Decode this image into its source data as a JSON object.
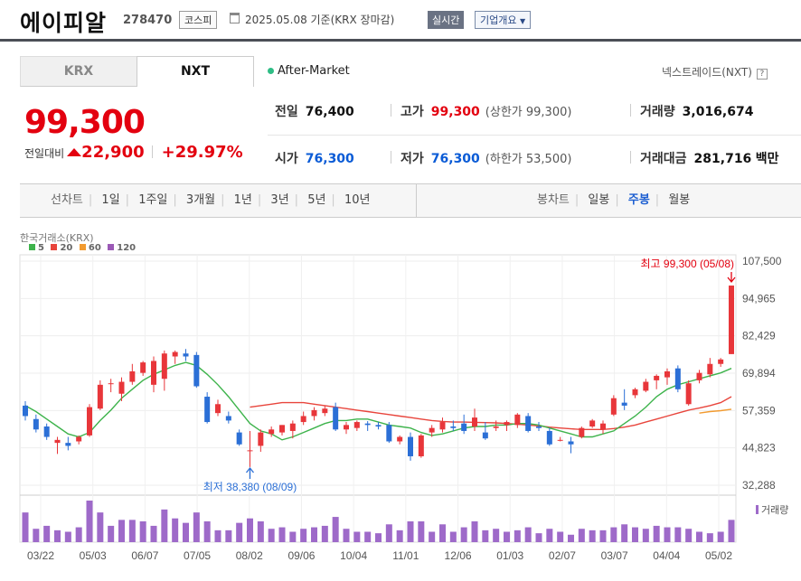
{
  "header": {
    "name": "에이피알",
    "code": "278470",
    "market": "코스피",
    "date_text": "2025.05.08  기준(KRX 장마감)",
    "realtime_label": "실시간",
    "overview_label": "기업개요"
  },
  "tabs": {
    "krx": "KRX",
    "nxt": "NXT"
  },
  "after_market": "After-Market",
  "nxt_link": "넥스트레이드(NXT)",
  "nxt_help": "?",
  "price": {
    "current": "99,300",
    "diff_label": "전일대비",
    "diff_amount": "22,900",
    "diff_pct": "+29.97%"
  },
  "stats": {
    "prev_close": {
      "label": "전일",
      "value": "76,400"
    },
    "high": {
      "label": "고가",
      "value": "99,300",
      "limit": "(상한가 99,300)"
    },
    "volume": {
      "label": "거래량",
      "value": "3,016,674"
    },
    "open": {
      "label": "시가",
      "value": "76,300"
    },
    "low": {
      "label": "저가",
      "value": "76,300",
      "limit": "(하한가 53,500)"
    },
    "amount": {
      "label": "거래대금",
      "value": "281,716",
      "unit": "백만"
    }
  },
  "period": {
    "line_label": "선차트",
    "line_items": [
      "1일",
      "1주일",
      "3개월",
      "1년",
      "3년",
      "5년",
      "10년"
    ],
    "candle_label": "봉차트",
    "candle_items": [
      "일봉",
      "주봉",
      "월봉"
    ],
    "active_candle": "주봉"
  },
  "chart_source": "한국거래소(KRX)",
  "legend": [
    "5",
    "20",
    "60",
    "120"
  ],
  "legend_colors": [
    "#3db34b",
    "#e8453c",
    "#f29b30",
    "#9b59b6"
  ],
  "chart_data": {
    "type": "candlestick",
    "y_ticks": [
      "107,500",
      "94,965",
      "82,429",
      "69,894",
      "57,359",
      "44,823",
      "32,288"
    ],
    "ylim": [
      32288,
      107500
    ],
    "x_labels": [
      "03/22",
      "05/03",
      "06/07",
      "07/05",
      "08/02",
      "09/06",
      "10/04",
      "11/01",
      "12/06",
      "01/03",
      "02/07",
      "03/07",
      "04/04",
      "05/02"
    ],
    "high_annotation": "최고 99,300 (05/08)",
    "low_annotation": "최저 38,380 (08/09)",
    "volume_label": "거래량",
    "candles": [
      [
        59000,
        60500,
        54000,
        55500
      ],
      [
        54500,
        56000,
        50000,
        51000
      ],
      [
        52000,
        53000,
        47500,
        48500
      ],
      [
        46500,
        48500,
        42800,
        47500
      ],
      [
        46500,
        48500,
        44000,
        45500
      ],
      [
        47000,
        49000,
        46000,
        48500
      ],
      [
        49000,
        59500,
        48500,
        58500
      ],
      [
        58000,
        67500,
        57500,
        66000
      ],
      [
        66500,
        68000,
        63500,
        66500
      ],
      [
        63000,
        68500,
        60500,
        67000
      ],
      [
        67000,
        73000,
        66000,
        70500
      ],
      [
        70000,
        74000,
        69000,
        73500
      ],
      [
        66000,
        75500,
        63500,
        74000
      ],
      [
        68000,
        77500,
        64000,
        76500
      ],
      [
        75500,
        77500,
        73000,
        77000
      ],
      [
        76500,
        78000,
        74000,
        75500
      ],
      [
        76000,
        77000,
        65000,
        65500
      ],
      [
        62000,
        63500,
        53000,
        53500
      ],
      [
        56500,
        61000,
        55500,
        59500
      ],
      [
        55500,
        57000,
        53000,
        54000
      ],
      [
        50000,
        51000,
        45500,
        46000
      ],
      [
        44000,
        50500,
        38380,
        44000
      ],
      [
        45500,
        51000,
        43500,
        50000
      ],
      [
        49500,
        52000,
        48500,
        51000
      ],
      [
        50000,
        52500,
        49000,
        52500
      ],
      [
        50500,
        54000,
        48000,
        53000
      ],
      [
        53500,
        57000,
        52500,
        55500
      ],
      [
        55500,
        58500,
        54000,
        57500
      ],
      [
        56500,
        59000,
        55500,
        58000
      ],
      [
        58500,
        60000,
        50500,
        51000
      ],
      [
        51000,
        53500,
        49500,
        52500
      ],
      [
        51500,
        54000,
        50500,
        53500
      ],
      [
        53000,
        53800,
        50500,
        52500
      ],
      [
        52500,
        53500,
        51000,
        52000
      ],
      [
        52500,
        53500,
        46500,
        47000
      ],
      [
        47000,
        49000,
        46000,
        48500
      ],
      [
        48500,
        50000,
        40500,
        42000
      ],
      [
        42000,
        49500,
        41500,
        49000
      ],
      [
        50000,
        52500,
        48500,
        51500
      ],
      [
        51000,
        55000,
        50000,
        53500
      ],
      [
        52000,
        54000,
        50500,
        51500
      ],
      [
        53000,
        56000,
        49500,
        50500
      ],
      [
        52000,
        58000,
        50500,
        55000
      ],
      [
        50000,
        53500,
        47500,
        48000
      ],
      [
        51500,
        54000,
        50500,
        52000
      ],
      [
        52500,
        54000,
        50500,
        53500
      ],
      [
        52500,
        56500,
        51500,
        56000
      ],
      [
        55500,
        56500,
        50000,
        50500
      ],
      [
        52000,
        53500,
        50500,
        51500
      ],
      [
        50500,
        51500,
        45500,
        46000
      ],
      [
        47500,
        48500,
        47000,
        47500
      ],
      [
        47000,
        48500,
        43000,
        46000
      ],
      [
        48500,
        52000,
        48000,
        51500
      ],
      [
        52000,
        54500,
        51500,
        54000
      ],
      [
        51000,
        54000,
        49500,
        53000
      ],
      [
        56000,
        62500,
        55500,
        61500
      ],
      [
        60000,
        64500,
        57500,
        59000
      ],
      [
        62500,
        65000,
        61500,
        64500
      ],
      [
        64000,
        68000,
        63500,
        67000
      ],
      [
        67500,
        69500,
        64500,
        69000
      ],
      [
        68500,
        71500,
        66000,
        70500
      ],
      [
        71500,
        72500,
        63500,
        64500
      ],
      [
        59500,
        67500,
        59000,
        66500
      ],
      [
        67500,
        71000,
        66500,
        70000
      ],
      [
        69500,
        75000,
        68500,
        73000
      ],
      [
        73000,
        75000,
        72000,
        74500
      ],
      [
        76300,
        99300,
        76300,
        99300
      ]
    ],
    "ma5": [
      59000,
      57000,
      54500,
      52000,
      49500,
      48500,
      50000,
      54000,
      57500,
      61500,
      64500,
      67500,
      69500,
      71000,
      72500,
      73500,
      72500,
      69500,
      66000,
      62000,
      57500,
      53000,
      50500,
      49500,
      47500,
      48500,
      50000,
      51500,
      53000,
      54000,
      54000,
      54500,
      54500,
      53500,
      52500,
      52000,
      51500,
      50000,
      49000,
      49500,
      50500,
      51500,
      52000,
      52000,
      52500,
      52500,
      53000,
      53000,
      52500,
      51500,
      50500,
      49500,
      48500,
      48500,
      49500,
      50500,
      53000,
      55500,
      58500,
      62000,
      64500,
      66000,
      67000,
      68000,
      69000,
      70000,
      71500
    ],
    "ma20": [
      null,
      null,
      null,
      null,
      null,
      null,
      null,
      null,
      null,
      null,
      null,
      null,
      null,
      null,
      null,
      null,
      null,
      null,
      null,
      null,
      null,
      58500,
      59000,
      59500,
      60000,
      60000,
      60000,
      59500,
      59000,
      58500,
      58000,
      57500,
      57000,
      56500,
      56000,
      55500,
      55000,
      54500,
      54000,
      53700,
      53500,
      53500,
      53400,
      53300,
      53200,
      53000,
      52800,
      52500,
      52200,
      51800,
      51500,
      51200,
      51000,
      51000,
      51000,
      51300,
      51800,
      52500,
      53500,
      54500,
      55500,
      56500,
      57500,
      58200,
      59000,
      60000,
      62000
    ],
    "ma60": [
      null,
      null,
      null,
      null,
      null,
      null,
      null,
      null,
      null,
      null,
      null,
      null,
      null,
      null,
      null,
      null,
      null,
      null,
      null,
      null,
      null,
      null,
      null,
      null,
      null,
      null,
      null,
      null,
      null,
      null,
      null,
      null,
      null,
      null,
      null,
      null,
      null,
      null,
      null,
      null,
      null,
      null,
      null,
      null,
      null,
      null,
      null,
      null,
      null,
      null,
      null,
      null,
      null,
      null,
      null,
      null,
      null,
      null,
      null,
      null,
      null,
      null,
      null,
      56500,
      57000,
      57300,
      57800
    ],
    "volume": [
      1.0,
      0.45,
      0.55,
      0.4,
      0.35,
      0.5,
      1.4,
      1.0,
      0.55,
      0.75,
      0.75,
      0.7,
      0.55,
      1.1,
      0.8,
      0.65,
      1.0,
      0.7,
      0.4,
      0.4,
      0.65,
      0.8,
      0.7,
      0.45,
      0.5,
      0.35,
      0.45,
      0.5,
      0.55,
      0.85,
      0.45,
      0.35,
      0.35,
      0.3,
      0.6,
      0.4,
      0.7,
      0.7,
      0.35,
      0.6,
      0.35,
      0.5,
      0.7,
      0.4,
      0.45,
      0.35,
      0.4,
      0.5,
      0.3,
      0.45,
      0.35,
      0.25,
      0.45,
      0.4,
      0.4,
      0.5,
      0.6,
      0.5,
      0.45,
      0.55,
      0.5,
      0.5,
      0.45,
      0.35,
      0.3,
      0.35,
      0.75
    ]
  }
}
